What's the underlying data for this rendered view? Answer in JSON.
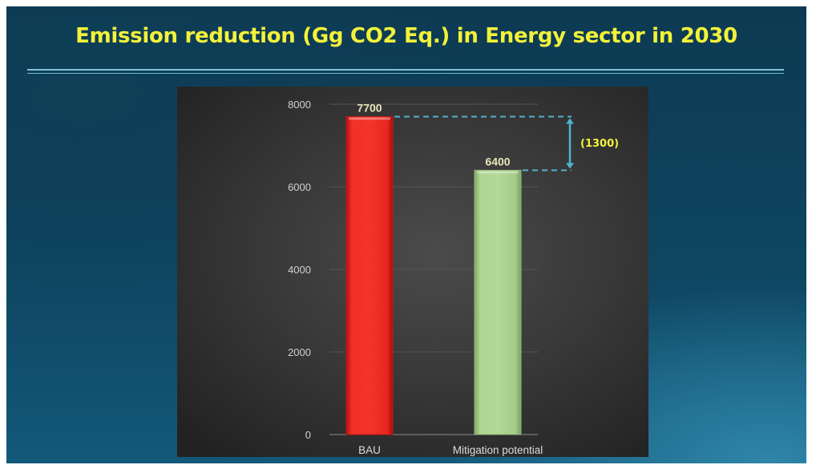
{
  "slide": {
    "title": "Emission reduction (Gg CO2 Eq.) in Energy sector in 2030"
  },
  "chart_data": {
    "type": "bar",
    "title": "",
    "xlabel": "",
    "ylabel": "",
    "categories": [
      "BAU",
      "Mitigation potential"
    ],
    "values": [
      7700,
      6400
    ],
    "data_labels": [
      "7700",
      "6400"
    ],
    "bar_colors": [
      "#ee2a24",
      "#a9d18e"
    ],
    "ylim": [
      0,
      8000
    ],
    "yticks": [
      0,
      2000,
      4000,
      6000,
      8000
    ],
    "ytick_labels": [
      "0",
      "2000",
      "4000",
      "6000",
      "8000"
    ],
    "grid": true,
    "legend": "none",
    "annotation": {
      "text": "(1300)",
      "from_value": 7700,
      "to_value": 6400,
      "color": "#4fb3cf"
    }
  },
  "colors": {
    "title": "#f2f23a",
    "slide_background": "#0e4560",
    "panel_background": "#3a3a3a"
  }
}
